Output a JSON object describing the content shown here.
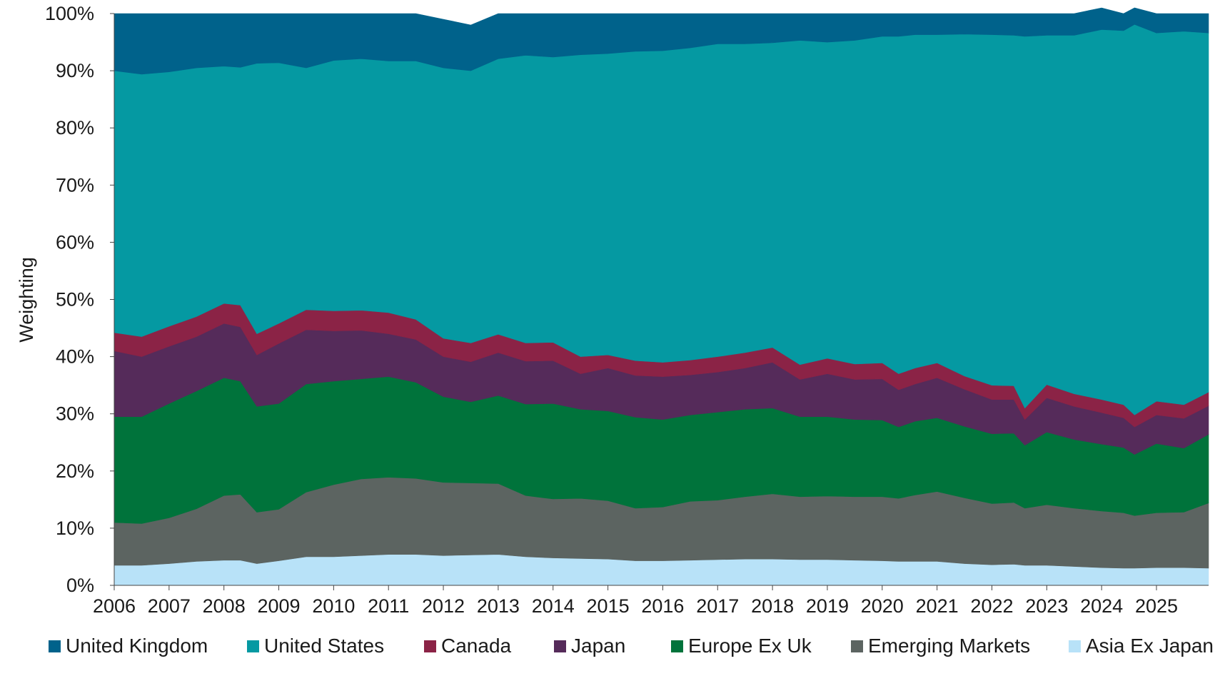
{
  "chart_data": {
    "type": "area",
    "stacked": true,
    "title": "",
    "xlabel": "",
    "ylabel": "Weighting",
    "ylim": [
      0,
      100
    ],
    "x_range": [
      2006,
      2025.95
    ],
    "yticks": [
      "0%",
      "10%",
      "20%",
      "30%",
      "40%",
      "50%",
      "60%",
      "70%",
      "80%",
      "90%",
      "100%"
    ],
    "xticks": [
      "2006",
      "2007",
      "2008",
      "2009",
      "2010",
      "2011",
      "2012",
      "2013",
      "2014",
      "2015",
      "2016",
      "2017",
      "2018",
      "2019",
      "2020",
      "2021",
      "2022",
      "2023",
      "2024",
      "2025"
    ],
    "legend_position": "bottom",
    "grid": false,
    "x": [
      2006.0,
      2006.5,
      2007.0,
      2007.5,
      2008.0,
      2008.3,
      2008.6,
      2009.0,
      2009.5,
      2010.0,
      2010.5,
      2011.0,
      2011.5,
      2012.0,
      2012.5,
      2013.0,
      2013.5,
      2014.0,
      2014.5,
      2015.0,
      2015.5,
      2016.0,
      2016.5,
      2017.0,
      2017.5,
      2018.0,
      2018.5,
      2019.0,
      2019.5,
      2020.0,
      2020.3,
      2020.6,
      2021.0,
      2021.5,
      2022.0,
      2022.4,
      2022.6,
      2023.0,
      2023.5,
      2024.0,
      2024.4,
      2024.6,
      2025.0,
      2025.5,
      2025.95
    ],
    "series": [
      {
        "name": "Asia Ex Japan",
        "color": "#b8e2f8",
        "values": [
          3.5,
          3.5,
          3.8,
          4.2,
          4.4,
          4.4,
          3.8,
          4.3,
          5.0,
          5.0,
          5.2,
          5.4,
          5.4,
          5.2,
          5.3,
          5.4,
          5.0,
          4.8,
          4.7,
          4.6,
          4.3,
          4.3,
          4.4,
          4.5,
          4.6,
          4.6,
          4.5,
          4.5,
          4.4,
          4.3,
          4.2,
          4.2,
          4.2,
          3.8,
          3.6,
          3.7,
          3.5,
          3.5,
          3.3,
          3.1,
          3.0,
          3.0,
          3.1,
          3.1,
          3.0
        ]
      },
      {
        "name": "Emerging Markets",
        "color": "#5c6461",
        "values": [
          7.5,
          7.3,
          8.0,
          9.2,
          11.3,
          11.5,
          9.0,
          9.0,
          11.3,
          12.6,
          13.4,
          13.5,
          13.3,
          12.8,
          12.6,
          12.4,
          10.7,
          10.3,
          10.5,
          10.2,
          9.2,
          9.4,
          10.3,
          10.4,
          10.9,
          11.4,
          11.0,
          11.1,
          11.1,
          11.2,
          11.0,
          11.6,
          12.2,
          11.5,
          10.7,
          10.8,
          10.0,
          10.6,
          10.2,
          9.9,
          9.7,
          9.2,
          9.6,
          9.7,
          11.4
        ]
      },
      {
        "name": "Europe Ex Uk",
        "color": "#00733b",
        "values": [
          18.5,
          18.7,
          20.0,
          20.6,
          20.6,
          19.8,
          18.5,
          18.5,
          18.9,
          18.1,
          17.5,
          17.6,
          16.8,
          15.0,
          14.2,
          15.4,
          16.0,
          16.7,
          15.6,
          15.7,
          15.9,
          15.3,
          15.1,
          15.4,
          15.3,
          15.0,
          14.0,
          13.9,
          13.5,
          13.4,
          12.5,
          12.9,
          12.9,
          12.5,
          12.2,
          12.1,
          11.0,
          12.7,
          12.0,
          11.7,
          11.4,
          10.7,
          12.1,
          11.2,
          12.0
        ]
      },
      {
        "name": "Japan",
        "color": "#552b5a",
        "values": [
          11.5,
          10.5,
          10.0,
          9.5,
          9.5,
          9.5,
          9.0,
          10.5,
          9.5,
          8.8,
          8.5,
          7.5,
          7.5,
          7.0,
          7.0,
          7.5,
          7.5,
          7.5,
          6.2,
          7.5,
          7.3,
          7.5,
          7.0,
          7.0,
          7.2,
          8.0,
          6.5,
          7.5,
          7.0,
          7.2,
          6.5,
          6.5,
          7.0,
          6.5,
          6.0,
          5.9,
          4.5,
          6.0,
          5.8,
          5.5,
          5.2,
          4.8,
          5.0,
          5.2,
          5.0
        ]
      },
      {
        "name": "Canada",
        "color": "#8b2346",
        "values": [
          3.2,
          3.5,
          3.5,
          3.5,
          3.5,
          3.8,
          3.7,
          3.5,
          3.5,
          3.5,
          3.5,
          3.7,
          3.5,
          3.2,
          3.3,
          3.2,
          3.2,
          3.2,
          3.0,
          2.3,
          2.6,
          2.5,
          2.6,
          2.7,
          2.7,
          2.6,
          2.6,
          2.7,
          2.7,
          2.8,
          2.8,
          2.8,
          2.6,
          2.3,
          2.5,
          2.4,
          2.0,
          2.3,
          2.2,
          2.3,
          2.3,
          2.1,
          2.4,
          2.4,
          2.4
        ]
      },
      {
        "name": "United States",
        "color": "#0599a2",
        "values": [
          45.8,
          45.9,
          44.5,
          43.5,
          41.5,
          41.6,
          47.3,
          45.6,
          42.3,
          43.8,
          44.0,
          44.0,
          45.2,
          47.3,
          47.6,
          48.2,
          50.3,
          49.9,
          52.8,
          52.7,
          54.1,
          54.5,
          54.6,
          54.7,
          54.0,
          53.3,
          56.7,
          55.3,
          56.6,
          57.1,
          59.0,
          58.3,
          57.4,
          59.8,
          61.3,
          61.3,
          65.0,
          61.1,
          62.7,
          64.7,
          65.4,
          68.3,
          64.4,
          65.3,
          62.8
        ]
      },
      {
        "name": "United Kingdom",
        "color": "#00628b",
        "values": [
          10.0,
          10.6,
          10.2,
          9.5,
          9.2,
          9.4,
          8.7,
          8.6,
          9.5,
          8.2,
          7.9,
          8.3,
          8.3,
          8.5,
          8.0,
          7.9,
          7.3,
          7.6,
          7.2,
          7.0,
          6.6,
          6.5,
          6.0,
          5.3,
          5.3,
          5.1,
          4.7,
          5.0,
          4.7,
          4.0,
          4.0,
          3.7,
          3.7,
          3.6,
          3.7,
          3.8,
          4.0,
          3.8,
          3.8,
          3.8,
          3.0,
          2.9,
          3.4,
          3.1,
          3.4
        ]
      }
    ]
  },
  "legend": [
    {
      "label": "United Kingdom",
      "color": "#00628b"
    },
    {
      "label": "United States",
      "color": "#0599a2"
    },
    {
      "label": "Canada",
      "color": "#8b2346"
    },
    {
      "label": "Japan",
      "color": "#552b5a"
    },
    {
      "label": "Europe Ex Uk",
      "color": "#00733b"
    },
    {
      "label": "Emerging Markets",
      "color": "#5c6461"
    },
    {
      "label": "Asia Ex Japan",
      "color": "#b8e2f8"
    }
  ]
}
